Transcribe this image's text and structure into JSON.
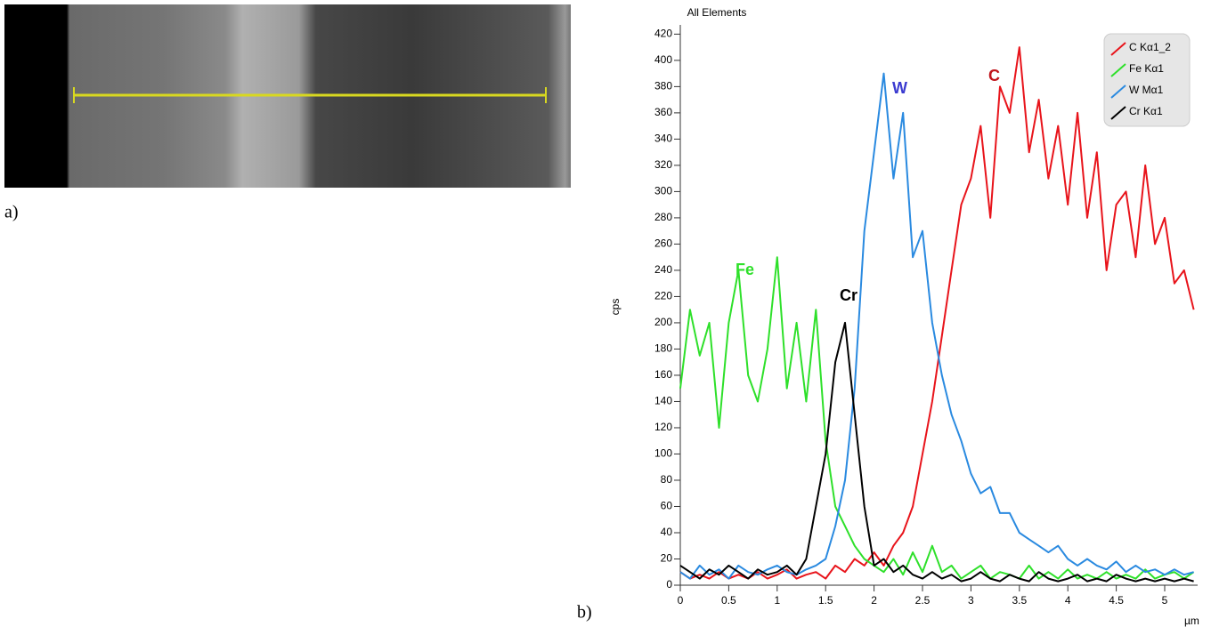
{
  "panel_labels": [
    "a)",
    "b)"
  ],
  "chart_data": {
    "type": "line",
    "title": "All Elements",
    "ylabel": "cps",
    "xlabel": "µm",
    "x": [
      0,
      0.1,
      0.2,
      0.3,
      0.4,
      0.5,
      0.6,
      0.7,
      0.8,
      0.9,
      1,
      1.1,
      1.2,
      1.3,
      1.4,
      1.5,
      1.6,
      1.7,
      1.8,
      1.9,
      2,
      2.1,
      2.2,
      2.3,
      2.4,
      2.5,
      2.6,
      2.7,
      2.8,
      2.9,
      3,
      3.1,
      3.2,
      3.3,
      3.4,
      3.5,
      3.6,
      3.7,
      3.8,
      3.9,
      4,
      4.1,
      4.2,
      4.3,
      4.4,
      4.5,
      4.6,
      4.7,
      4.8,
      4.9,
      5,
      5.1,
      5.2,
      5.3
    ],
    "series": [
      {
        "name": "C Kα1_2",
        "color": "#e8141b",
        "values": [
          10,
          5,
          8,
          5,
          10,
          5,
          8,
          5,
          10,
          5,
          8,
          12,
          5,
          8,
          10,
          5,
          15,
          10,
          20,
          15,
          25,
          15,
          30,
          40,
          60,
          100,
          140,
          190,
          240,
          290,
          310,
          350,
          280,
          380,
          360,
          410,
          330,
          370,
          310,
          350,
          290,
          360,
          280,
          330,
          240,
          290,
          300,
          250,
          320,
          260,
          280,
          230,
          240,
          210
        ]
      },
      {
        "name": "Fe Kα1",
        "color": "#2ee02a",
        "values": [
          150,
          210,
          175,
          200,
          120,
          200,
          240,
          160,
          140,
          180,
          250,
          150,
          200,
          140,
          210,
          110,
          60,
          45,
          30,
          20,
          15,
          10,
          20,
          8,
          25,
          10,
          30,
          10,
          15,
          5,
          10,
          15,
          5,
          10,
          8,
          5,
          15,
          5,
          10,
          5,
          12,
          5,
          8,
          5,
          10,
          5,
          8,
          5,
          12,
          5,
          8,
          10,
          5,
          10
        ]
      },
      {
        "name": "W Mα1",
        "color": "#2a8ae0",
        "values": [
          10,
          5,
          15,
          8,
          12,
          5,
          15,
          10,
          8,
          12,
          15,
          10,
          8,
          12,
          15,
          20,
          45,
          80,
          150,
          270,
          330,
          390,
          310,
          360,
          250,
          270,
          200,
          160,
          130,
          110,
          85,
          70,
          75,
          55,
          55,
          40,
          35,
          30,
          25,
          30,
          20,
          15,
          20,
          15,
          12,
          18,
          10,
          15,
          10,
          12,
          8,
          12,
          8,
          10
        ]
      },
      {
        "name": "Cr Kα1",
        "color": "#000000",
        "values": [
          15,
          10,
          5,
          12,
          8,
          15,
          10,
          5,
          12,
          8,
          10,
          15,
          8,
          20,
          60,
          100,
          170,
          200,
          130,
          60,
          15,
          20,
          10,
          15,
          8,
          5,
          10,
          5,
          8,
          3,
          5,
          10,
          5,
          3,
          8,
          5,
          3,
          10,
          5,
          3,
          5,
          8,
          3,
          5,
          3,
          8,
          5,
          3,
          5,
          3,
          5,
          3,
          5,
          3
        ]
      }
    ],
    "annotations": [
      {
        "text": "W",
        "color": "#3b3bd0"
      },
      {
        "text": "C",
        "color": "#c0141b"
      },
      {
        "text": "Fe",
        "color": "#2ee02a"
      },
      {
        "text": "Cr",
        "color": "#000000"
      }
    ],
    "xlim": [
      0,
      5.34
    ],
    "ylim": [
      0,
      425
    ],
    "xticks": [
      0,
      0.5,
      1,
      1.5,
      2,
      2.5,
      3,
      3.5,
      4,
      4.5,
      5
    ],
    "yticks": [
      0,
      20,
      40,
      60,
      80,
      100,
      120,
      140,
      160,
      180,
      200,
      220,
      240,
      260,
      280,
      300,
      320,
      340,
      360,
      380,
      400,
      420
    ],
    "legend": "top-right"
  }
}
